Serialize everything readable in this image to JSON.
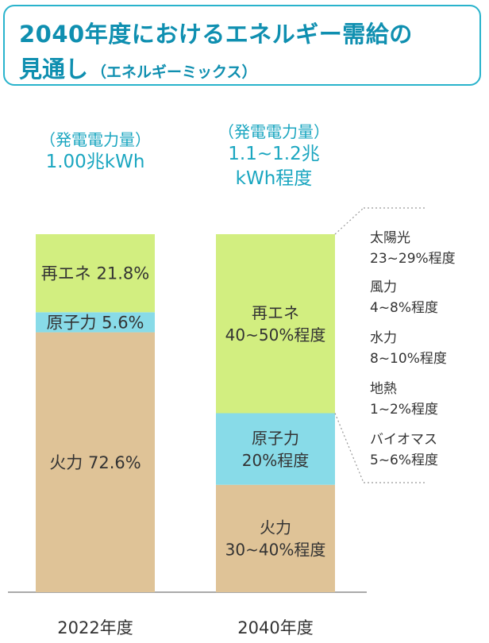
{
  "header": {
    "title_line1": "2040年度におけるエネルギー需給の",
    "title_line2": "見通し",
    "title_sub": "（エネルギーミックス）"
  },
  "columns": [
    {
      "total_label": "（発電電力量）",
      "total_value_lines": [
        "1.00兆kWh"
      ]
    },
    {
      "total_label": "（発電電力量）",
      "total_value_lines": [
        "1.1~1.2兆",
        "kWh程度"
      ]
    }
  ],
  "breakdown": [
    {
      "name": "太陽光",
      "range": "23~29%程度"
    },
    {
      "name": "風力",
      "range": "4~8%程度"
    },
    {
      "name": "水力",
      "range": "8~10%程度"
    },
    {
      "name": "地熱",
      "range": "1~2%程度"
    },
    {
      "name": "バイオマス",
      "range": "5~6%程度"
    }
  ],
  "chart_data": {
    "type": "bar",
    "stacked": true,
    "categories": [
      "2022年度",
      "2040年度"
    ],
    "series": [
      {
        "name": "火力",
        "color": "#dfc397",
        "values": [
          72.6,
          30
        ],
        "labels": [
          [
            "火力 72.6%"
          ],
          [
            "火力",
            "30~40%程度"
          ]
        ]
      },
      {
        "name": "原子力",
        "color": "#88dbe8",
        "values": [
          5.6,
          20
        ],
        "labels": [
          [
            "原子力 5.6%"
          ],
          [
            "原子力",
            "20%程度"
          ]
        ]
      },
      {
        "name": "再エネ",
        "color": "#d2ee80",
        "values": [
          21.8,
          50
        ],
        "labels": [
          [
            "再エネ 21.8%"
          ],
          [
            "再エネ",
            "40~50%程度"
          ]
        ]
      }
    ],
    "ylim": [
      0,
      100
    ],
    "grid": false,
    "legend": "none"
  }
}
